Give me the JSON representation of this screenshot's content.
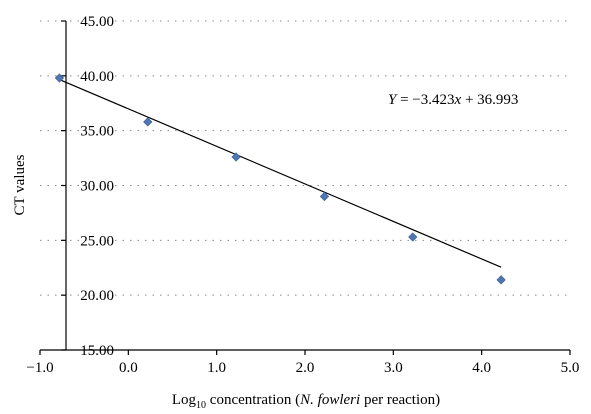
{
  "chart_data": {
    "type": "scatter",
    "title": "",
    "xlabel": {
      "prefix": "Log",
      "subscript": "10",
      "middle": " concentration (",
      "italic_genus": "N.",
      "italic_species": "fowleri",
      "suffix": " per reaction)"
    },
    "ylabel": "CT values",
    "xlim": [
      -1.0,
      5.0
    ],
    "ylim": [
      15.0,
      45.0
    ],
    "x_ticks": [
      -1.0,
      0.0,
      1.0,
      2.0,
      3.0,
      4.0,
      5.0
    ],
    "x_tick_labels": [
      "−1.0",
      "0.0",
      "1.0",
      "2.0",
      "3.0",
      "4.0",
      "5.0"
    ],
    "y_ticks": [
      15.0,
      20.0,
      25.0,
      30.0,
      35.0,
      40.0,
      45.0
    ],
    "y_tick_labels": [
      "15.00",
      "20.00",
      "25.00",
      "30.00",
      "35.00",
      "40.00",
      "45.00"
    ],
    "grid": "horizontal-dotted",
    "series": [
      {
        "x": [
          -0.78,
          0.22,
          1.22,
          2.22,
          3.22,
          4.22
        ],
        "y": [
          39.8,
          35.8,
          32.6,
          29.0,
          25.3,
          21.4
        ],
        "color": "#4f76b0",
        "marker": "diamond"
      }
    ],
    "trendline": {
      "slope": -3.423,
      "intercept": 36.993,
      "x_range": [
        -0.78,
        4.22
      ],
      "equation_parts": {
        "y": "Y",
        "mid": " = −3.423",
        "x": "x",
        "tail": " + 36.993"
      }
    }
  }
}
